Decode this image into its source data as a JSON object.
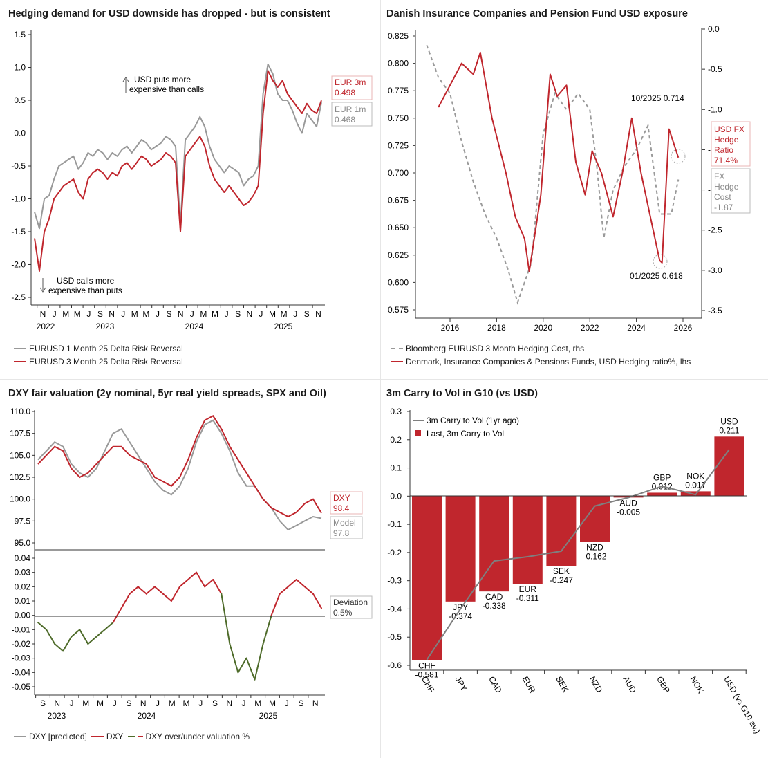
{
  "chart_data": [
    {
      "type": "line",
      "title": "Hedging demand for USD downside has dropped - but is consistent",
      "y_ticks": [
        "1.5",
        "1.0",
        "0.5",
        "0.0",
        "-0.5",
        "-1.0",
        "-1.5",
        "-2.0",
        "-2.5"
      ],
      "ylim": [
        -2.5,
        1.5
      ],
      "x_month_ticks": [
        "N",
        "J",
        "M",
        "M",
        "J",
        "S",
        "N",
        "J",
        "M",
        "M",
        "J",
        "S",
        "N",
        "J",
        "M",
        "M",
        "J",
        "S",
        "N",
        "J",
        "M",
        "M",
        "J",
        "S",
        "N"
      ],
      "x_year_labels": [
        "2022",
        "2023",
        "2024",
        "2025"
      ],
      "annotations": {
        "up_line1": "USD puts more",
        "up_line2": "expensive than calls",
        "down_line1": "USD calls more",
        "down_line2": "expensive than puts"
      },
      "end_labels": {
        "eur3m_name": "EUR 3m",
        "eur3m_value": "0.498",
        "eur1m_name": "EUR 1m",
        "eur1m_value": "0.468"
      },
      "series": [
        {
          "name": "EURUSD 1 Month 25 Delta Risk Reversal",
          "color": "#999999",
          "values": [
            -1.2,
            -1.45,
            -1.0,
            -0.95,
            -0.7,
            -0.5,
            -0.45,
            -0.4,
            -0.35,
            -0.55,
            -0.45,
            -0.3,
            -0.35,
            -0.25,
            -0.3,
            -0.4,
            -0.3,
            -0.35,
            -0.25,
            -0.2,
            -0.3,
            -0.2,
            -0.1,
            -0.15,
            -0.25,
            -0.2,
            -0.15,
            -0.05,
            -0.1,
            -0.2,
            -1.4,
            -0.1,
            0.0,
            0.1,
            0.25,
            0.1,
            -0.2,
            -0.4,
            -0.5,
            -0.6,
            -0.5,
            -0.55,
            -0.6,
            -0.8,
            -0.7,
            -0.65,
            -0.5,
            0.6,
            1.05,
            0.9,
            0.6,
            0.5,
            0.5,
            0.35,
            0.15,
            0.0,
            0.3,
            0.2,
            0.1,
            0.468
          ]
        },
        {
          "name": "EURUSD 3 Month 25 Delta Risk Reversal",
          "color": "#c0262d",
          "values": [
            -1.6,
            -2.1,
            -1.5,
            -1.3,
            -1.0,
            -0.9,
            -0.8,
            -0.75,
            -0.7,
            -0.9,
            -1.0,
            -0.7,
            -0.6,
            -0.55,
            -0.6,
            -0.7,
            -0.6,
            -0.65,
            -0.5,
            -0.45,
            -0.55,
            -0.45,
            -0.35,
            -0.4,
            -0.5,
            -0.45,
            -0.4,
            -0.3,
            -0.35,
            -0.45,
            -1.5,
            -0.35,
            -0.25,
            -0.15,
            -0.05,
            -0.2,
            -0.5,
            -0.7,
            -0.8,
            -0.9,
            -0.8,
            -0.9,
            -1.0,
            -1.1,
            -1.05,
            -0.95,
            -0.8,
            0.3,
            0.95,
            0.8,
            0.7,
            0.8,
            0.6,
            0.5,
            0.4,
            0.3,
            0.45,
            0.35,
            0.3,
            0.498
          ]
        }
      ],
      "legend_position": "bottom"
    },
    {
      "type": "line",
      "title": "Danish Insurance Companies and Pension Fund USD exposure",
      "y_left_ticks": [
        "0.825",
        "0.800",
        "0.775",
        "0.750",
        "0.725",
        "0.700",
        "0.675",
        "0.650",
        "0.625",
        "0.600",
        "0.575"
      ],
      "y_right_ticks": [
        "0.0",
        "-0.5",
        "-1.0",
        "-1.5",
        "-2.0",
        "-2.5",
        "-3.0",
        "-3.5"
      ],
      "x_ticks": [
        "2016",
        "2018",
        "2020",
        "2022",
        "2024",
        "2026"
      ],
      "ylim_left": [
        0.575,
        0.825
      ],
      "ylim_right": [
        -3.5,
        0.0
      ],
      "annotations": {
        "high": "10/2025 0.714",
        "low": "01/2025 0.618"
      },
      "end_labels": {
        "ratio_l1": "USD FX",
        "ratio_l2": "Hedge",
        "ratio_l3": "Ratio",
        "ratio_value": "71.4%",
        "cost_l1": "FX",
        "cost_l2": "Hedge",
        "cost_l3": "Cost",
        "cost_value": "-1.87"
      },
      "series": [
        {
          "name": "Bloomberg EURUSD 3 Month Hedging Cost, rhs",
          "color": "#9a9a9a",
          "axis": "right",
          "x": [
            2015.0,
            2015.5,
            2016.0,
            2016.5,
            2017.0,
            2017.5,
            2018.0,
            2018.5,
            2018.9,
            2019.5,
            2020.0,
            2020.5,
            2021.0,
            2021.5,
            2022.0,
            2022.3,
            2022.6,
            2023.0,
            2023.5,
            2024.0,
            2024.5,
            2025.0,
            2025.5,
            2025.8
          ],
          "values": [
            -0.2,
            -0.6,
            -0.8,
            -1.4,
            -1.9,
            -2.3,
            -2.6,
            -3.0,
            -3.4,
            -2.9,
            -1.3,
            -0.8,
            -1.0,
            -0.8,
            -1.0,
            -1.7,
            -2.6,
            -2.0,
            -1.7,
            -1.5,
            -1.2,
            -2.3,
            -2.3,
            -1.87
          ]
        },
        {
          "name": "Denmark, Insurance Companies & Pensions Funds, USD Hedging ratio%, lhs",
          "color": "#c0262d",
          "axis": "left",
          "x": [
            2015.5,
            2016.0,
            2016.5,
            2017.0,
            2017.3,
            2017.8,
            2018.4,
            2018.8,
            2019.2,
            2019.4,
            2019.9,
            2020.3,
            2020.6,
            2021.0,
            2021.4,
            2021.8,
            2022.1,
            2022.5,
            2023.0,
            2023.4,
            2023.8,
            2024.2,
            2024.6,
            2025.0,
            2025.1,
            2025.4,
            2025.8
          ],
          "values": [
            0.76,
            0.78,
            0.8,
            0.79,
            0.81,
            0.75,
            0.7,
            0.66,
            0.64,
            0.61,
            0.68,
            0.79,
            0.77,
            0.78,
            0.71,
            0.68,
            0.72,
            0.7,
            0.66,
            0.7,
            0.75,
            0.7,
            0.66,
            0.62,
            0.618,
            0.74,
            0.714
          ]
        }
      ],
      "legend_position": "bottom"
    },
    {
      "type": "line",
      "title": "DXY fair valuation (2y nominal, 5yr real yield spreads, SPX and Oil)",
      "upper_y_ticks": [
        "110.0",
        "107.5",
        "105.0",
        "102.5",
        "100.0",
        "97.5",
        "95.0"
      ],
      "lower_y_ticks": [
        "0.04",
        "0.03",
        "0.02",
        "0.01",
        "0.00",
        "-0.01",
        "-0.02",
        "-0.03",
        "-0.04",
        "-0.05"
      ],
      "x_month_ticks": [
        "S",
        "N",
        "J",
        "M",
        "M",
        "J",
        "S",
        "N",
        "J",
        "M",
        "M",
        "J",
        "S",
        "N",
        "J",
        "M",
        "M",
        "J",
        "S",
        "N"
      ],
      "x_year_labels": [
        "2023",
        "2024",
        "2025"
      ],
      "end_labels": {
        "dxy_name": "DXY",
        "dxy_value": "98.4",
        "model_name": "Model",
        "model_value": "97.8",
        "dev_name": "Deviation",
        "dev_value": "0.5%"
      },
      "series": [
        {
          "name": "DXY [predicted]",
          "color": "#999999",
          "values": [
            104.5,
            105.5,
            106.5,
            106.0,
            104.0,
            103.0,
            102.5,
            103.5,
            105.5,
            107.5,
            108.0,
            106.5,
            105.0,
            103.5,
            102.0,
            101.0,
            100.5,
            101.5,
            103.5,
            106.5,
            108.5,
            109.0,
            107.5,
            105.5,
            103.0,
            101.5,
            101.5,
            100.0,
            99.0,
            97.5,
            96.5,
            97.0,
            97.5,
            98.0,
            97.8
          ]
        },
        {
          "name": "DXY",
          "color": "#c0262d",
          "values": [
            104.0,
            105.0,
            106.0,
            105.5,
            103.5,
            102.5,
            103.0,
            104.0,
            105.0,
            106.0,
            106.0,
            105.0,
            104.5,
            104.0,
            102.5,
            102.0,
            101.5,
            102.5,
            104.5,
            107.0,
            109.0,
            109.5,
            108.0,
            106.0,
            104.5,
            103.0,
            101.5,
            100.0,
            99.0,
            98.5,
            98.0,
            98.5,
            99.5,
            100.0,
            98.4
          ]
        },
        {
          "name": "DXY over/under valuation %",
          "color": "#4e6b2a",
          "values": [
            -0.005,
            -0.01,
            -0.02,
            -0.025,
            -0.015,
            -0.01,
            -0.02,
            -0.015,
            -0.01,
            -0.005,
            0.005,
            0.015,
            0.02,
            0.015,
            0.02,
            0.015,
            0.01,
            0.02,
            0.025,
            0.03,
            0.02,
            0.025,
            0.015,
            -0.02,
            -0.04,
            -0.03,
            -0.045,
            -0.02,
            0.0,
            0.015,
            0.02,
            0.025,
            0.02,
            0.015,
            0.005
          ]
        }
      ],
      "legend_position": "bottom"
    },
    {
      "type": "bar",
      "title": "3m Carry to Vol in G10 (vs USD)",
      "categories": [
        "CHF",
        "JPY",
        "CAD",
        "EUR",
        "SEK",
        "NZD",
        "AUD",
        "GBP",
        "NOK",
        "USD (vs G10 av.)"
      ],
      "bar_labels": [
        "CHF",
        "JPY",
        "CAD",
        "EUR",
        "SEK",
        "NZD",
        "AUD",
        "GBP",
        "NOK",
        "USD"
      ],
      "value_labels": [
        "-0.581",
        "-0.374",
        "-0.338",
        "-0.311",
        "-0.247",
        "-0.162",
        "-0.005",
        "0.012",
        "0.017",
        "0.211"
      ],
      "y_ticks": [
        "0.3",
        "0.2",
        "0.1",
        "0.0",
        "-0.1",
        "-0.2",
        "-0.3",
        "-0.4",
        "-0.5",
        "-0.6"
      ],
      "ylim": [
        -0.6,
        0.3
      ],
      "series": [
        {
          "name": "Last, 3m Carry to Vol",
          "color": "#c0262d",
          "values": [
            -0.581,
            -0.374,
            -0.338,
            -0.311,
            -0.247,
            -0.162,
            -0.005,
            0.012,
            0.017,
            0.211
          ]
        },
        {
          "name": "3m Carry to Vol (1yr ago)",
          "color": "#7f7f7f",
          "values": [
            -0.58,
            -0.4,
            -0.23,
            -0.215,
            -0.195,
            -0.035,
            -0.005,
            0.035,
            0.005,
            0.165
          ]
        }
      ],
      "legend_position": "top-left"
    }
  ]
}
